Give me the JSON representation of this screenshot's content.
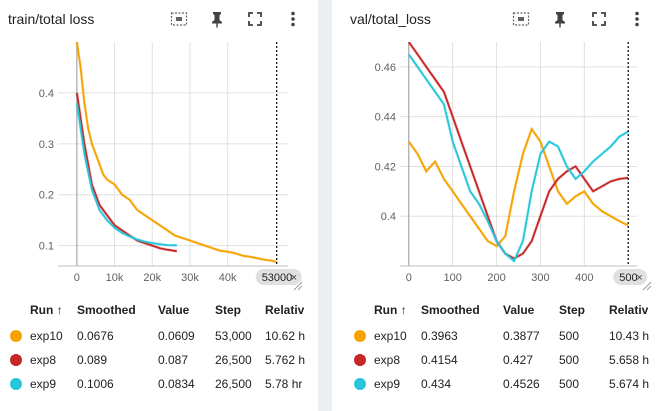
{
  "panels": {
    "left": {
      "title": "train/total loss",
      "cursor_label": "53000",
      "chart": {
        "type": "line",
        "xlim": [
          -5000,
          56000
        ],
        "ylim": [
          0.06,
          0.5
        ],
        "x_ticks": [
          0,
          10000,
          20000,
          30000,
          40000
        ],
        "x_tick_labels": [
          "0",
          "10k",
          "20k",
          "30k",
          "40k"
        ],
        "y_ticks": [
          0.1,
          0.2,
          0.3,
          0.4
        ],
        "y_tick_labels": [
          "0.1",
          "0.2",
          "0.3",
          "0.4"
        ],
        "series": [
          {
            "name": "exp10",
            "color": "#f4a300",
            "x": [
              0,
              1000,
              2000,
              3000,
              4000,
              5000,
              6000,
              7000,
              8000,
              10000,
              12000,
              14000,
              16000,
              18000,
              20000,
              22000,
              24000,
              26000,
              28000,
              30000,
              32000,
              34000,
              36000,
              38000,
              40000,
              42000,
              44000,
              46000,
              48000,
              50000,
              52000,
              53000
            ],
            "y": [
              0.5,
              0.45,
              0.38,
              0.33,
              0.3,
              0.28,
              0.26,
              0.24,
              0.23,
              0.22,
              0.2,
              0.19,
              0.17,
              0.16,
              0.15,
              0.14,
              0.13,
              0.12,
              0.115,
              0.11,
              0.105,
              0.1,
              0.095,
              0.09,
              0.088,
              0.085,
              0.08,
              0.078,
              0.075,
              0.072,
              0.07,
              0.0676
            ]
          },
          {
            "name": "exp8",
            "color": "#c62828",
            "x": [
              0,
              2000,
              4000,
              6000,
              8000,
              10000,
              12000,
              14000,
              16000,
              18000,
              20000,
              22000,
              24000,
              26500
            ],
            "y": [
              0.4,
              0.3,
              0.22,
              0.18,
              0.16,
              0.14,
              0.13,
              0.12,
              0.11,
              0.105,
              0.1,
              0.095,
              0.092,
              0.089
            ]
          },
          {
            "name": "exp9",
            "color": "#26c6da",
            "x": [
              0,
              2000,
              4000,
              6000,
              8000,
              10000,
              12000,
              14000,
              16000,
              18000,
              20000,
              22000,
              24000,
              26500
            ],
            "y": [
              0.38,
              0.28,
              0.21,
              0.17,
              0.15,
              0.135,
              0.125,
              0.118,
              0.112,
              0.108,
              0.105,
              0.103,
              0.101,
              0.1006
            ]
          }
        ]
      }
    },
    "right": {
      "title": "val/total_loss",
      "cursor_label": "500",
      "chart": {
        "type": "line",
        "xlim": [
          -20,
          520
        ],
        "ylim": [
          0.38,
          0.47
        ],
        "x_ticks": [
          0,
          100,
          200,
          300,
          400
        ],
        "x_tick_labels": [
          "0",
          "100",
          "200",
          "300",
          "400"
        ],
        "y_ticks": [
          0.4,
          0.42,
          0.44,
          0.46
        ],
        "y_tick_labels": [
          "0.4",
          "0.42",
          "0.44",
          "0.46"
        ],
        "series": [
          {
            "name": "exp10",
            "color": "#f4a300",
            "x": [
              0,
              20,
              40,
              60,
              80,
              100,
              120,
              140,
              160,
              180,
              200,
              220,
              240,
              260,
              280,
              300,
              320,
              340,
              360,
              380,
              400,
              420,
              440,
              460,
              480,
              500
            ],
            "y": [
              0.43,
              0.425,
              0.418,
              0.422,
              0.415,
              0.41,
              0.405,
              0.4,
              0.395,
              0.39,
              0.388,
              0.392,
              0.41,
              0.425,
              0.435,
              0.43,
              0.42,
              0.41,
              0.405,
              0.408,
              0.41,
              0.405,
              0.402,
              0.4,
              0.398,
              0.3963
            ]
          },
          {
            "name": "exp8",
            "color": "#c62828",
            "x": [
              0,
              20,
              40,
              60,
              80,
              100,
              120,
              140,
              160,
              180,
              200,
              220,
              240,
              260,
              280,
              300,
              320,
              340,
              360,
              380,
              400,
              420,
              440,
              460,
              480,
              500
            ],
            "y": [
              0.47,
              0.465,
              0.46,
              0.455,
              0.45,
              0.44,
              0.43,
              0.42,
              0.41,
              0.4,
              0.39,
              0.385,
              0.383,
              0.385,
              0.39,
              0.4,
              0.41,
              0.415,
              0.418,
              0.42,
              0.415,
              0.41,
              0.412,
              0.414,
              0.415,
              0.4154
            ]
          },
          {
            "name": "exp9",
            "color": "#26c6da",
            "x": [
              0,
              20,
              40,
              60,
              80,
              100,
              120,
              140,
              160,
              180,
              200,
              220,
              240,
              260,
              280,
              300,
              320,
              340,
              360,
              380,
              400,
              420,
              440,
              460,
              480,
              500
            ],
            "y": [
              0.465,
              0.46,
              0.455,
              0.45,
              0.445,
              0.43,
              0.42,
              0.41,
              0.405,
              0.398,
              0.39,
              0.385,
              0.382,
              0.39,
              0.41,
              0.425,
              0.43,
              0.428,
              0.42,
              0.415,
              0.418,
              0.422,
              0.425,
              0.428,
              0.432,
              0.434
            ]
          }
        ]
      }
    }
  },
  "table": {
    "left": {
      "headers": {
        "run": "Run ↑",
        "smoothed": "Smoothed",
        "value": "Value",
        "step": "Step",
        "relative": "Relativ"
      },
      "rows": [
        {
          "run": "exp10",
          "color": "#f4a300",
          "smoothed": "0.0676",
          "value": "0.0609",
          "step": "53,000",
          "relative": "10.62 h"
        },
        {
          "run": "exp8",
          "color": "#c62828",
          "smoothed": "0.089",
          "value": "0.087",
          "step": "26,500",
          "relative": "5.762 h"
        },
        {
          "run": "exp9",
          "color": "#26c6da",
          "smoothed": "0.1006",
          "value": "0.0834",
          "step": "26,500",
          "relative": "5.78 hr"
        }
      ]
    },
    "right": {
      "headers": {
        "run": "Run ↑",
        "smoothed": "Smoothed",
        "value": "Value",
        "step": "Step",
        "relative": "Relativ"
      },
      "rows": [
        {
          "run": "exp10",
          "color": "#f4a300",
          "smoothed": "0.3963",
          "value": "0.3877",
          "step": "500",
          "relative": "10.43 h"
        },
        {
          "run": "exp8",
          "color": "#c62828",
          "smoothed": "0.4154",
          "value": "0.427",
          "step": "500",
          "relative": "5.658 h"
        },
        {
          "run": "exp9",
          "color": "#26c6da",
          "smoothed": "0.434",
          "value": "0.4526",
          "step": "500",
          "relative": "5.674 h"
        }
      ]
    }
  }
}
